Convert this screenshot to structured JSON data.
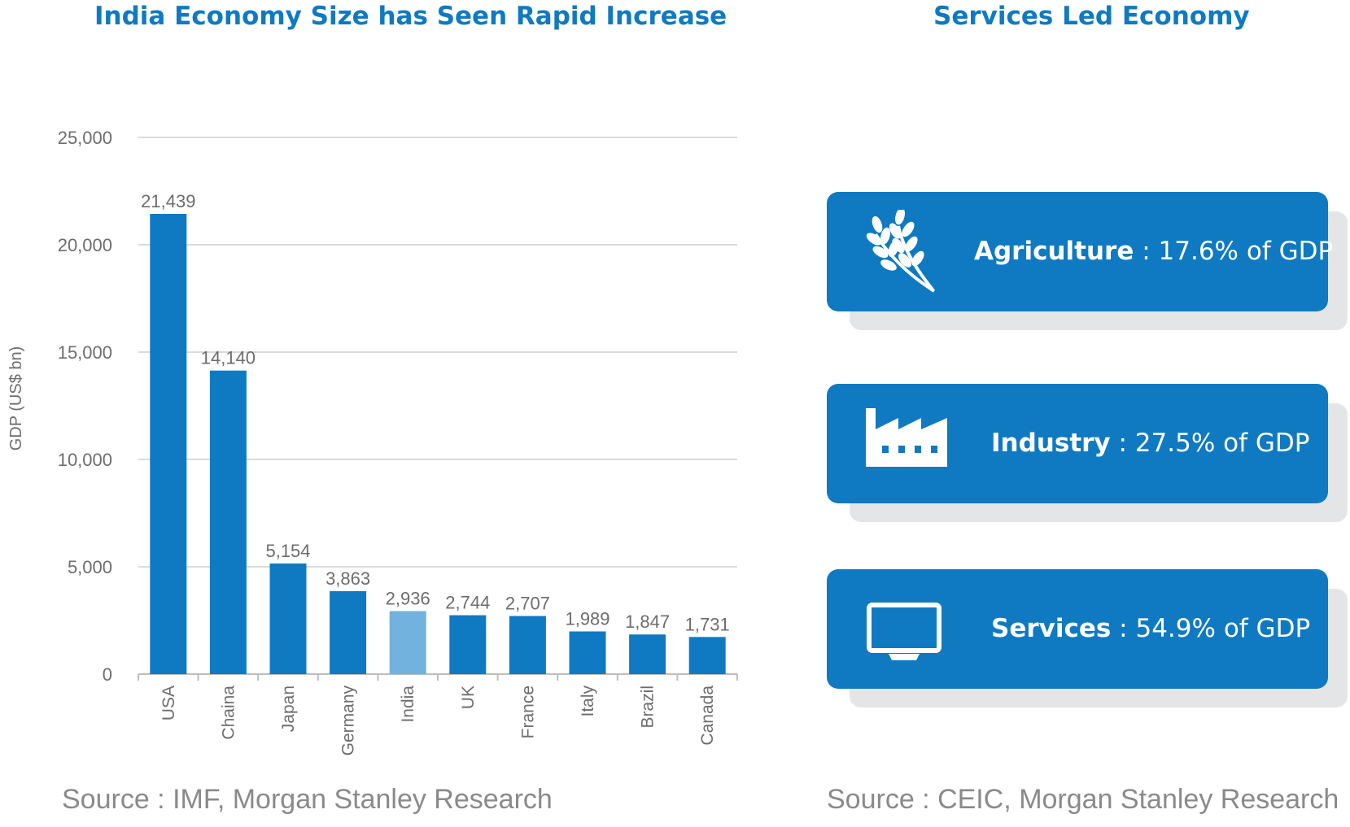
{
  "left_panel": {
    "title": "India Economy Size has Seen Rapid Increase",
    "source": "Source : IMF, Morgan Stanley Research"
  },
  "right_panel": {
    "title": "Services Led Economy",
    "source": "Source : CEIC, Morgan Stanley Research",
    "cards": [
      {
        "label": "Agriculture",
        "separator": " : ",
        "value": "17.6% of GDP",
        "icon": "wheat-icon"
      },
      {
        "label": "Industry",
        "separator": " : ",
        "value": "27.5% of GDP",
        "icon": "factory-icon"
      },
      {
        "label": "Services",
        "separator": " : ",
        "value": "54.9% of GDP",
        "icon": "monitor-icon"
      }
    ]
  },
  "chart_data": {
    "type": "bar",
    "title": "India Economy Size has Seen Rapid Increase",
    "ylabel": "GDP (US$ bn)",
    "xlabel": "",
    "ylim": [
      0,
      25000
    ],
    "yticks": [
      0,
      5000,
      10000,
      15000,
      20000,
      25000
    ],
    "ytick_labels": [
      "0",
      "5,000",
      "10,000",
      "15,000",
      "20,000",
      "25,000"
    ],
    "categories": [
      "USA",
      "Chaina",
      "Japan",
      "Germany",
      "India",
      "UK",
      "France",
      "Italy",
      "Brazil",
      "Canada"
    ],
    "values": [
      21439,
      14140,
      5154,
      3863,
      2936,
      2744,
      2707,
      1989,
      1847,
      1731
    ],
    "value_labels": [
      "21,439",
      "14,140",
      "5,154",
      "3,863",
      "2,936",
      "2,744",
      "2,707",
      "1,989",
      "1,847",
      "1,731"
    ],
    "highlight_category": "India",
    "grid": true,
    "colors": {
      "bar": "#0f7ac1",
      "highlight": "#72b2de",
      "grid": "#cfcfcf"
    }
  }
}
